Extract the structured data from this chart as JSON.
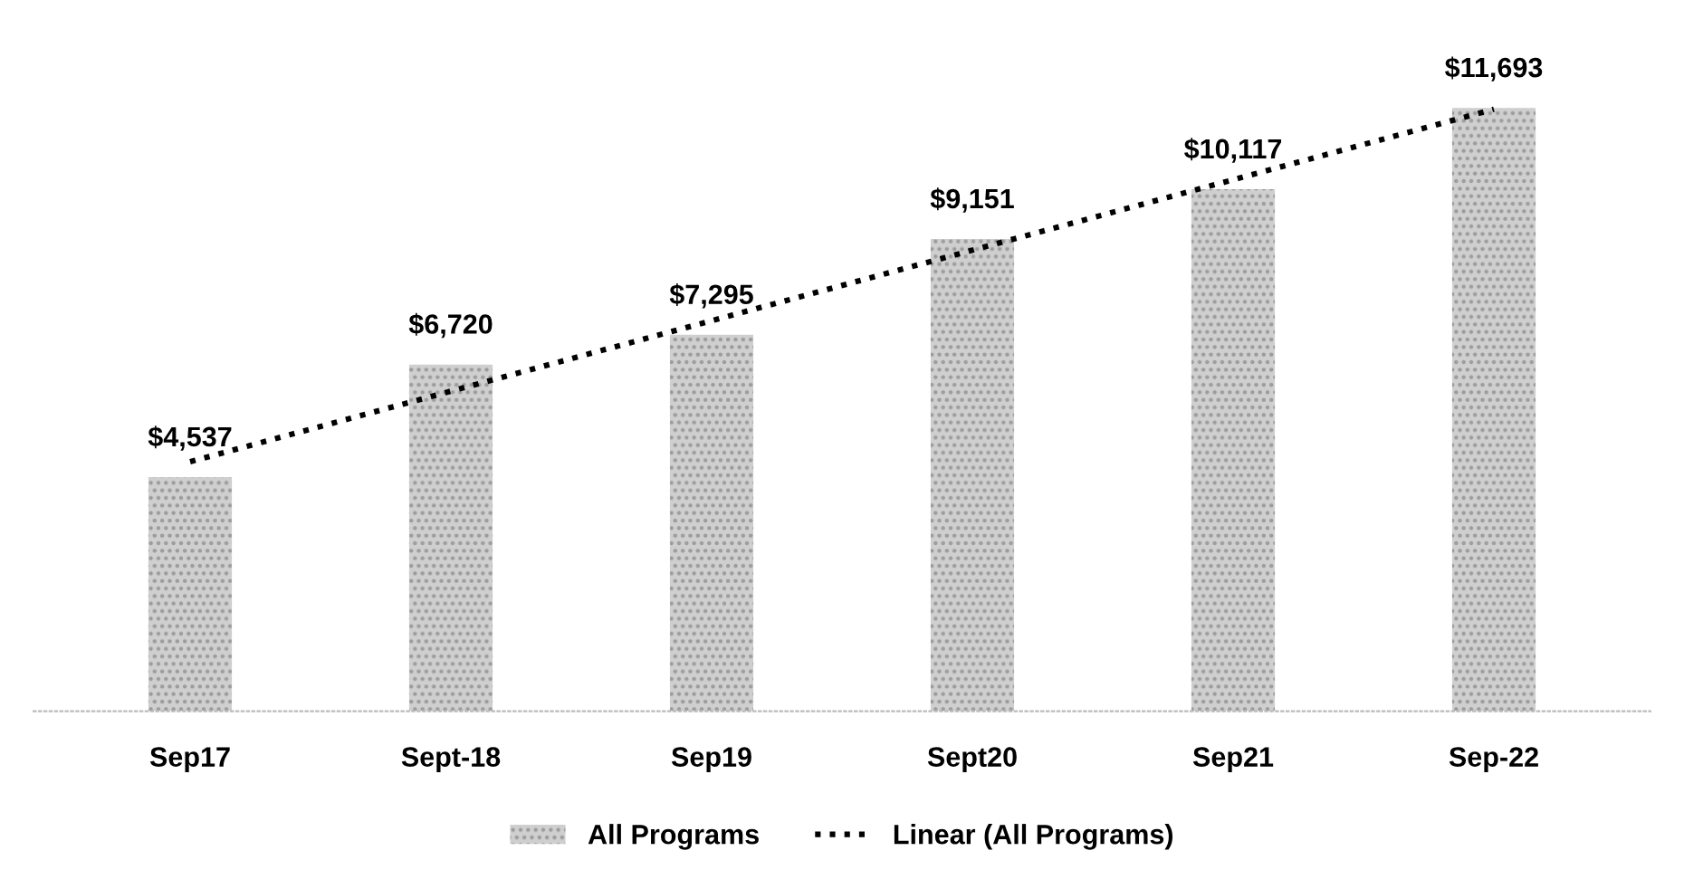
{
  "chart_data": {
    "type": "bar",
    "categories": [
      "Sep17",
      "Sept-18",
      "Sep19",
      "Sept20",
      "Sep21",
      "Sep-22"
    ],
    "series": [
      {
        "name": "All Programs",
        "color": "#cfcfcf",
        "values": [
          4537,
          6720,
          7295,
          9151,
          10117,
          11693
        ],
        "value_labels": [
          "$4,537",
          "$6,720",
          "$7,295",
          "$9,151",
          "$10,117",
          "$11,693"
        ]
      },
      {
        "name": "Linear (All Programs)",
        "type": "line",
        "color": "#000000",
        "line_style": "dotted",
        "values": [
          4836,
          6203,
          7569,
          8936,
          10302,
          11668
        ]
      }
    ],
    "legend": "bottom",
    "grid": false
  }
}
